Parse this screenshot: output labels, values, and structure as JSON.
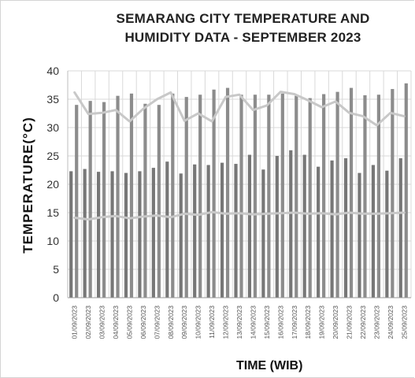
{
  "chart_data": {
    "type": "bar",
    "title_line1": "SEMARANG CITY TEMPERATURE AND",
    "title_line2": "HUMIDITY DATA - SEPTEMBER 2023",
    "xlabel": "TIME (WIB)",
    "ylabel": "TEMPERATURE(°C)",
    "ylim": [
      0,
      40
    ],
    "yticks": [
      "0",
      "5",
      "10",
      "15",
      "20",
      "25",
      "30",
      "35",
      "40"
    ],
    "grid": true,
    "categories": [
      "01/09/2023",
      "02/09/2023",
      "03/09/2023",
      "04/09/2023",
      "05/09/2023",
      "06/09/2023",
      "07/09/2023",
      "08/09/2023",
      "09/09/2023",
      "10/09/2023",
      "11/09/2023",
      "12/09/2023",
      "13/09/2023",
      "14/09/2023",
      "15/09/2023",
      "16/09/2023",
      "17/09/2023",
      "18/09/2023",
      "19/09/2023",
      "20/09/2023",
      "21/09/2023",
      "22/09/2023",
      "23/09/2023",
      "24/09/2023",
      "25/09/2023"
    ],
    "series": [
      {
        "kind": "bar",
        "color": "#777777",
        "values": [
          22.3,
          22.7,
          22.2,
          22.3,
          22.0,
          22.3,
          22.9,
          24.0,
          21.9,
          23.5,
          23.4,
          23.8,
          23.6,
          25.2,
          22.6,
          25.0,
          26.0,
          25.2,
          23.1,
          24.2,
          24.6,
          22.0,
          23.4,
          22.4,
          24.6
        ]
      },
      {
        "kind": "bar",
        "color": "#8c8c8c",
        "values": [
          34.0,
          34.7,
          34.5,
          35.6,
          36.0,
          34.2,
          34.0,
          36.0,
          35.4,
          35.8,
          36.7,
          37.0,
          35.8,
          35.8,
          35.8,
          36.0,
          35.6,
          35.2,
          35.9,
          36.3,
          37.0,
          35.7,
          35.8,
          36.8,
          37.8
        ]
      },
      {
        "kind": "line",
        "color": "#c8c8c8",
        "values": [
          36.2,
          32.4,
          32.6,
          33.1,
          31.1,
          33.3,
          35.0,
          36.2,
          31.2,
          32.5,
          31.1,
          35.4,
          35.8,
          33.1,
          33.9,
          36.3,
          35.9,
          34.8,
          33.6,
          34.6,
          32.6,
          32.0,
          30.4,
          32.6,
          32.0
        ]
      },
      {
        "kind": "line",
        "color": "#c8c8c8",
        "values": [
          14.1,
          13.8,
          14.2,
          14.4,
          14.0,
          14.3,
          14.5,
          14.2,
          14.8,
          14.6,
          15.1,
          14.8,
          14.9,
          14.7,
          14.8,
          14.9,
          15.0,
          14.8,
          14.9,
          14.7,
          15.0,
          14.8,
          14.8,
          14.9,
          15.0
        ]
      }
    ]
  }
}
